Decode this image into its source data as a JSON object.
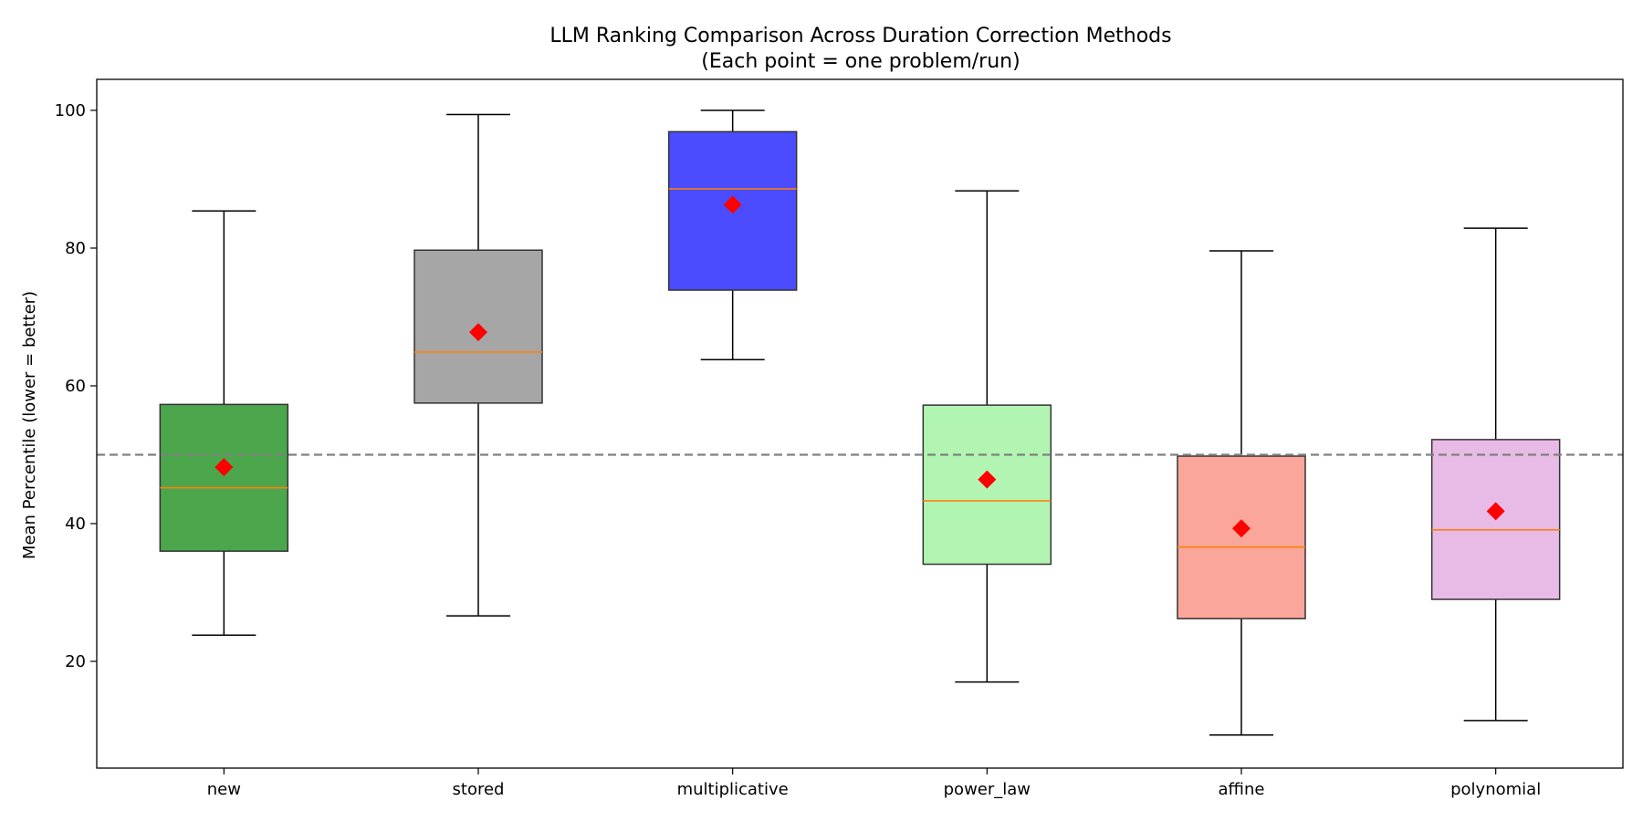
{
  "chart_data": {
    "type": "box",
    "title": "LLM Ranking Comparison Across Duration Correction Methods",
    "subtitle": "(Each point = one problem/run)",
    "xlabel": "",
    "ylabel": "Mean Percentile (lower = better)",
    "ylim": [
      4.5,
      104.5
    ],
    "yticks": [
      20,
      40,
      60,
      80,
      100
    ],
    "reference_line": {
      "y": 50,
      "style": "dashed",
      "color": "#808080"
    },
    "grid": false,
    "legend": "none",
    "categories": [
      "new",
      "stored",
      "multiplicative",
      "power_law",
      "affine",
      "polynomial"
    ],
    "boxes": [
      {
        "category": "new",
        "whisker_low": 23.8,
        "q1": 36.0,
        "median": 45.2,
        "q3": 57.3,
        "whisker_high": 85.4,
        "mean": 48.2,
        "color": "#4ca64c"
      },
      {
        "category": "stored",
        "whisker_low": 26.6,
        "q1": 57.5,
        "median": 64.9,
        "q3": 79.7,
        "whisker_high": 99.4,
        "mean": 67.8,
        "color": "#a6a6a6"
      },
      {
        "category": "multiplicative",
        "whisker_low": 63.8,
        "q1": 73.9,
        "median": 88.6,
        "q3": 96.9,
        "whisker_high": 100.0,
        "mean": 86.3,
        "color": "#4c4cff"
      },
      {
        "category": "power_law",
        "whisker_low": 17.0,
        "q1": 34.1,
        "median": 43.3,
        "q3": 57.2,
        "whisker_high": 88.3,
        "mean": 46.4,
        "color": "#b2f5b2"
      },
      {
        "category": "affine",
        "whisker_low": 9.3,
        "q1": 26.2,
        "median": 36.6,
        "q3": 49.8,
        "whisker_high": 79.6,
        "mean": 39.3,
        "color": "#faa69a"
      },
      {
        "category": "polynomial",
        "whisker_low": 11.4,
        "q1": 29.0,
        "median": 39.1,
        "q3": 52.2,
        "whisker_high": 82.9,
        "mean": 41.8,
        "color": "#e8bae6"
      }
    ],
    "median_color": "#ff7f0e",
    "mean_marker": {
      "shape": "diamond",
      "color": "#ff0000"
    }
  }
}
